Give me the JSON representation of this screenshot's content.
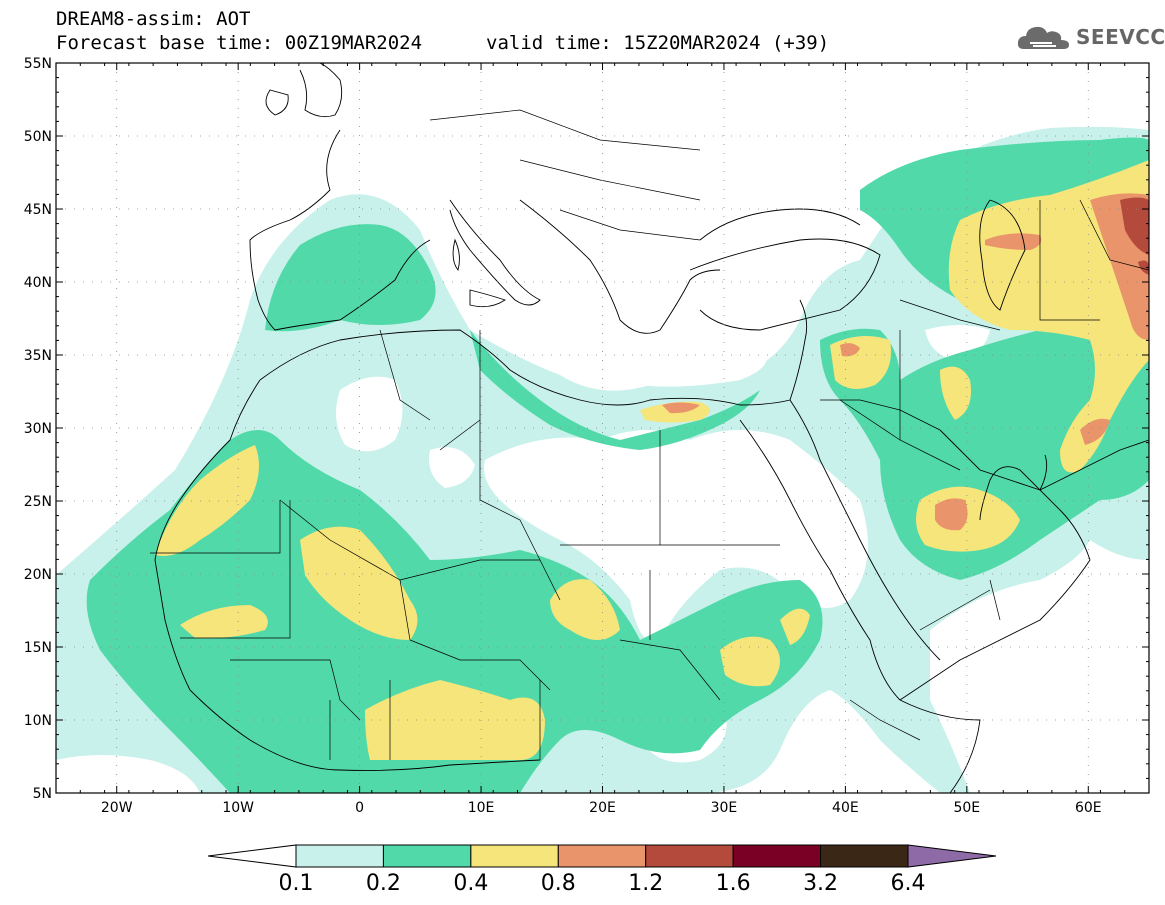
{
  "header": {
    "model": "DREAM8-assim: AOT",
    "base_time": "Forecast base time: 00Z19MAR2024",
    "valid_time": "valid time: 15Z20MAR2024 (+39)"
  },
  "logo": {
    "text": "SEEVCCC",
    "icon": "cloud-icon"
  },
  "map": {
    "lon_range": [
      -25,
      65
    ],
    "lat_range": [
      5,
      55
    ],
    "lat_labels": [
      "55N",
      "50N",
      "45N",
      "40N",
      "35N",
      "30N",
      "25N",
      "20N",
      "15N",
      "10N",
      "5N"
    ],
    "lon_labels": [
      "20W",
      "10W",
      "0",
      "10E",
      "20E",
      "30E",
      "40E",
      "50E",
      "60E"
    ]
  },
  "colorbar": {
    "colors": [
      "#ffffff",
      "#c7f1ea",
      "#52d9a9",
      "#f6e57a",
      "#e9946a",
      "#b44a3c",
      "#7a0026",
      "#3b2716",
      "#8e6ba6"
    ],
    "labels": [
      "0.1",
      "0.2",
      "0.4",
      "0.8",
      "1.2",
      "1.6",
      "3.2",
      "6.4"
    ]
  }
}
